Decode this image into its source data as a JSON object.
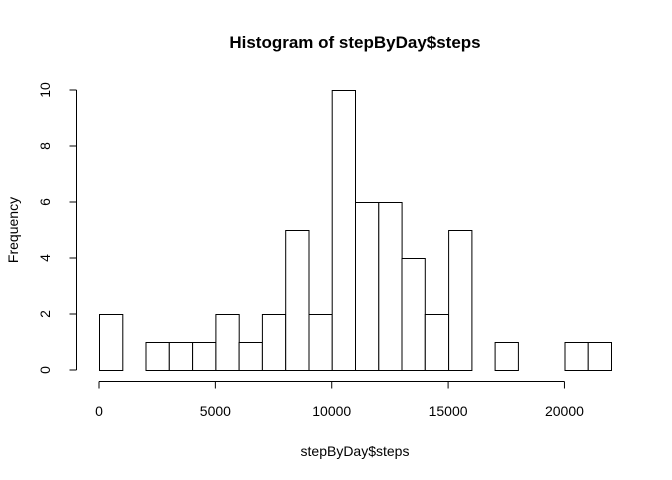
{
  "chart_data": {
    "type": "bar",
    "title": "Histogram of stepByDay$steps",
    "xlabel": "stepByDay$steps",
    "ylabel": "Frequency",
    "bin_width": 1000,
    "bins_start": [
      0,
      1000,
      2000,
      3000,
      4000,
      5000,
      6000,
      7000,
      8000,
      9000,
      10000,
      11000,
      12000,
      13000,
      14000,
      15000,
      16000,
      17000,
      18000,
      19000,
      20000,
      21000
    ],
    "values": [
      2,
      0,
      1,
      1,
      1,
      2,
      1,
      2,
      5,
      2,
      10,
      6,
      6,
      4,
      2,
      5,
      0,
      1,
      0,
      0,
      1,
      1
    ],
    "xlim": [
      0,
      22000
    ],
    "ylim": [
      0,
      10
    ],
    "x_ticks": [
      0,
      5000,
      10000,
      15000,
      20000
    ],
    "y_ticks": [
      0,
      2,
      4,
      6,
      8,
      10
    ],
    "bar_fill": "#ffffff",
    "bar_stroke": "#000000",
    "grid": false
  }
}
